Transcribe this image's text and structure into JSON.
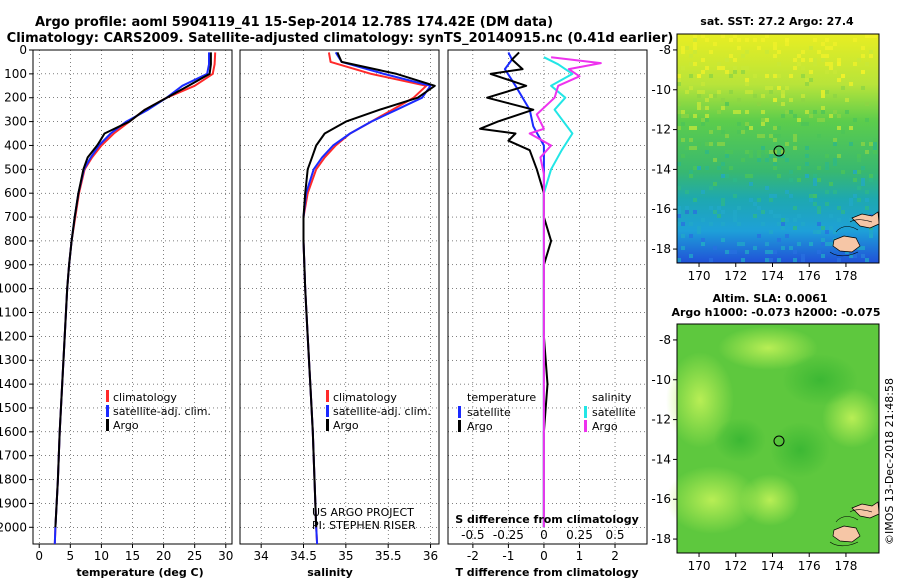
{
  "header": {
    "title_line1": "Argo profile: aoml 5904119_41 15-Sep-2014 12.78S 174.42E (DM data)",
    "title_line2": "Climatology: CARS2009. Satellite-adjusted climatology: synTS_20140915.nc (0.41d earlier)"
  },
  "colors": {
    "climatology": "#ff2a2a",
    "satellite": "#1a2aff",
    "argo": "#000000",
    "sat_salinity": "#22e6e6",
    "argo_salinity": "#ee33ee"
  },
  "credits": {
    "line1": "US ARGO PROJECT",
    "line2": "PI: STEPHEN RISER",
    "watermark": "©IMOS 13-Dec-2018 21:48:58"
  },
  "chart_data": [
    {
      "type": "line",
      "name": "temperature-profile",
      "xlabel": "temperature (deg C)",
      "xlim": [
        -1,
        31
      ],
      "ylim": [
        2070,
        0
      ],
      "xticks": [
        "0",
        "5",
        "10",
        "15",
        "20",
        "25",
        "30"
      ],
      "xtick_values": [
        0,
        5,
        10,
        15,
        20,
        25,
        30
      ],
      "yticks": [
        "0",
        "100",
        "200",
        "300",
        "400",
        "500",
        "600",
        "700",
        "800",
        "900",
        "1000",
        "1100",
        "1200",
        "1300",
        "1400",
        "1500",
        "1600",
        "1700",
        "1800",
        "1900",
        "2000"
      ],
      "legend": [
        "climatology",
        "satellite-adj. clim.",
        "Argo"
      ],
      "series": [
        {
          "name": "climatology",
          "color": "#ff2a2a",
          "points": [
            [
              28.3,
              10
            ],
            [
              28.2,
              60
            ],
            [
              27.9,
              100
            ],
            [
              25,
              150
            ],
            [
              20.5,
              200
            ],
            [
              17,
              250
            ],
            [
              14.5,
              300
            ],
            [
              12,
              350
            ],
            [
              10,
              400
            ],
            [
              8.5,
              450
            ],
            [
              7.3,
              500
            ],
            [
              6.4,
              600
            ],
            [
              5.8,
              700
            ],
            [
              5.2,
              800
            ],
            [
              4.8,
              900
            ],
            [
              4.5,
              1000
            ],
            [
              4.1,
              1200
            ],
            [
              3.7,
              1400
            ],
            [
              3.3,
              1600
            ],
            [
              3.0,
              1800
            ],
            [
              2.6,
              2000
            ],
            [
              2.5,
              2070
            ]
          ]
        },
        {
          "name": "satellite-adj. clim.",
          "color": "#1a2aff",
          "points": [
            [
              27.3,
              10
            ],
            [
              27.3,
              60
            ],
            [
              27.0,
              100
            ],
            [
              23,
              150
            ],
            [
              20.5,
              200
            ],
            [
              17.5,
              250
            ],
            [
              14,
              300
            ],
            [
              11.5,
              350
            ],
            [
              9.6,
              400
            ],
            [
              8.3,
              450
            ],
            [
              7.2,
              500
            ],
            [
              6.3,
              600
            ],
            [
              5.7,
              700
            ],
            [
              5.2,
              800
            ],
            [
              4.8,
              900
            ],
            [
              4.5,
              1000
            ],
            [
              4.1,
              1200
            ],
            [
              3.7,
              1400
            ],
            [
              3.3,
              1600
            ],
            [
              3.0,
              1800
            ],
            [
              2.6,
              2000
            ],
            [
              2.5,
              2070
            ]
          ]
        },
        {
          "name": "Argo",
          "color": "#000000",
          "points": [
            [
              27.6,
              10
            ],
            [
              27.6,
              60
            ],
            [
              27.4,
              100
            ],
            [
              24,
              150
            ],
            [
              20.5,
              200
            ],
            [
              17,
              250
            ],
            [
              14.5,
              300
            ],
            [
              10.5,
              350
            ],
            [
              9.8,
              380
            ],
            [
              9.3,
              400
            ],
            [
              7.8,
              450
            ],
            [
              7.1,
              500
            ],
            [
              6.3,
              600
            ],
            [
              5.7,
              700
            ],
            [
              5.2,
              800
            ],
            [
              4.8,
              900
            ],
            [
              4.5,
              1000
            ],
            [
              4.1,
              1200
            ],
            [
              3.7,
              1400
            ],
            [
              3.3,
              1600
            ],
            [
              3.0,
              1800
            ],
            [
              2.6,
              2000
            ]
          ]
        }
      ]
    },
    {
      "type": "line",
      "name": "salinity-profile",
      "xlabel": "salinity",
      "xlim": [
        33.75,
        36.1
      ],
      "ylim": [
        2070,
        0
      ],
      "xticks": [
        "34",
        "34.5",
        "35",
        "35.5",
        "36"
      ],
      "xtick_values": [
        34,
        34.5,
        35,
        35.5,
        36
      ],
      "legend": [
        "climatology",
        "satellite-adj. clim.",
        "Argo"
      ],
      "series": [
        {
          "name": "climatology",
          "color": "#ff2a2a",
          "points": [
            [
              34.8,
              10
            ],
            [
              34.82,
              50
            ],
            [
              35.3,
              100
            ],
            [
              35.95,
              150
            ],
            [
              35.8,
              200
            ],
            [
              35.55,
              250
            ],
            [
              35.3,
              300
            ],
            [
              35.05,
              350
            ],
            [
              34.88,
              400
            ],
            [
              34.75,
              450
            ],
            [
              34.65,
              500
            ],
            [
              34.55,
              600
            ],
            [
              34.5,
              700
            ],
            [
              34.5,
              800
            ],
            [
              34.52,
              1000
            ],
            [
              34.55,
              1200
            ],
            [
              34.58,
              1400
            ],
            [
              34.61,
              1600
            ],
            [
              34.63,
              1800
            ],
            [
              34.65,
              2000
            ],
            [
              34.66,
              2070
            ]
          ]
        },
        {
          "name": "satellite-adj. clim.",
          "color": "#1a2aff",
          "points": [
            [
              34.88,
              10
            ],
            [
              34.95,
              50
            ],
            [
              35.45,
              100
            ],
            [
              36.0,
              150
            ],
            [
              35.9,
              200
            ],
            [
              35.6,
              250
            ],
            [
              35.3,
              300
            ],
            [
              35.05,
              350
            ],
            [
              34.85,
              400
            ],
            [
              34.72,
              450
            ],
            [
              34.62,
              500
            ],
            [
              34.53,
              600
            ],
            [
              34.5,
              700
            ],
            [
              34.5,
              800
            ],
            [
              34.52,
              1000
            ],
            [
              34.55,
              1200
            ],
            [
              34.58,
              1400
            ],
            [
              34.61,
              1600
            ],
            [
              34.63,
              1800
            ],
            [
              34.65,
              2000
            ],
            [
              34.66,
              2070
            ]
          ]
        },
        {
          "name": "Argo",
          "color": "#000000",
          "points": [
            [
              34.9,
              10
            ],
            [
              34.95,
              50
            ],
            [
              35.6,
              100
            ],
            [
              36.05,
              150
            ],
            [
              35.85,
              200
            ],
            [
              35.4,
              250
            ],
            [
              35.0,
              300
            ],
            [
              34.75,
              350
            ],
            [
              34.65,
              400
            ],
            [
              34.6,
              450
            ],
            [
              34.55,
              500
            ],
            [
              34.52,
              600
            ],
            [
              34.5,
              700
            ],
            [
              34.5,
              800
            ],
            [
              34.52,
              1000
            ],
            [
              34.55,
              1200
            ],
            [
              34.58,
              1400
            ],
            [
              34.61,
              1600
            ],
            [
              34.63,
              1800
            ],
            [
              34.65,
              2000
            ]
          ]
        }
      ]
    },
    {
      "type": "line",
      "name": "difference-profile",
      "xlabel": "T difference from climatology",
      "xlim": [
        -2.7,
        2.9
      ],
      "ylim": [
        2070,
        0
      ],
      "xticks": [
        "-2",
        "-1",
        "0",
        "1",
        "2"
      ],
      "xtick_values": [
        -2,
        -1,
        0,
        1,
        2
      ],
      "secondary_label": "S difference from climatology",
      "secondary_ticks": [
        "-0.5",
        "-0.25",
        "0",
        "0.25",
        "0.5"
      ],
      "secondary_tick_values": [
        -2,
        -1,
        0,
        1,
        2
      ],
      "legend_temperature_title": "temperature",
      "legend_salinity_title": "salinity",
      "legend": [
        "satellite",
        "Argo",
        "satellite",
        "Argo"
      ],
      "series": [
        {
          "name": "T satellite",
          "color": "#1a2aff",
          "points": [
            [
              -1,
              10
            ],
            [
              -0.9,
              40
            ],
            [
              -1.1,
              80
            ],
            [
              -0.8,
              150
            ],
            [
              -0.4,
              250
            ],
            [
              -0.3,
              320
            ],
            [
              0,
              400
            ],
            [
              0,
              500
            ],
            [
              0,
              600
            ],
            [
              0,
              800
            ],
            [
              0,
              1200
            ],
            [
              0,
              2000
            ]
          ]
        },
        {
          "name": "T Argo",
          "color": "#000000",
          "points": [
            [
              -0.7,
              10
            ],
            [
              -0.9,
              40
            ],
            [
              -0.6,
              80
            ],
            [
              -1.5,
              100
            ],
            [
              -0.5,
              150
            ],
            [
              -1.6,
              200
            ],
            [
              -0.3,
              250
            ],
            [
              -1.3,
              300
            ],
            [
              -1.8,
              330
            ],
            [
              -0.8,
              350
            ],
            [
              -1.0,
              380
            ],
            [
              -0.4,
              420
            ],
            [
              -0.2,
              500
            ],
            [
              0,
              600
            ],
            [
              0,
              700
            ],
            [
              0.2,
              800
            ],
            [
              0,
              900
            ],
            [
              0,
              1200
            ],
            [
              0.1,
              1400
            ],
            [
              0,
              1600
            ],
            [
              0,
              2000
            ]
          ]
        },
        {
          "name": "S satellite",
          "color": "#22e6e6",
          "points": [
            [
              0,
              30
            ],
            [
              0.4,
              60
            ],
            [
              0.8,
              100
            ],
            [
              0.2,
              150
            ],
            [
              0.6,
              200
            ],
            [
              0.3,
              250
            ],
            [
              0.8,
              350
            ],
            [
              0.5,
              420
            ],
            [
              0.2,
              500
            ],
            [
              0,
              600
            ],
            [
              0,
              800
            ],
            [
              0,
              1400
            ],
            [
              0,
              2000
            ]
          ]
        },
        {
          "name": "S Argo",
          "color": "#ee33ee",
          "points": [
            [
              0.2,
              30
            ],
            [
              1.6,
              55
            ],
            [
              0.7,
              80
            ],
            [
              1.0,
              110
            ],
            [
              0.4,
              150
            ],
            [
              0.3,
              200
            ],
            [
              -0.2,
              270
            ],
            [
              0,
              330
            ],
            [
              -0.4,
              350
            ],
            [
              0.2,
              400
            ],
            [
              -0.1,
              450
            ],
            [
              0,
              520
            ],
            [
              0,
              600
            ],
            [
              0,
              800
            ],
            [
              0,
              1200
            ],
            [
              0,
              2000
            ]
          ]
        }
      ]
    },
    {
      "type": "heatmap",
      "name": "sst-map",
      "title": "sat. SST: 27.2 Argo: 27.4",
      "xlim": [
        168.8,
        179.8
      ],
      "ylim": [
        -18.7,
        -7.2
      ],
      "xticks": [
        "170",
        "172",
        "174",
        "176",
        "178"
      ],
      "xtick_values": [
        170,
        172,
        174,
        176,
        178
      ],
      "yticks": [
        "-8",
        "-10",
        "-12",
        "-14",
        "-16",
        "-18"
      ],
      "ytick_values": [
        -8,
        -10,
        -12,
        -14,
        -16,
        -18
      ],
      "argo_position": [
        174.42,
        -12.78
      ]
    },
    {
      "type": "heatmap",
      "name": "sla-map",
      "title_line1": "Altim. SLA: 0.0061",
      "title_line2": "Argo h1000: -0.073 h2000: -0.075",
      "xlim": [
        168.8,
        179.8
      ],
      "ylim": [
        -18.7,
        -7.2
      ],
      "xticks": [
        "170",
        "172",
        "174",
        "176",
        "178"
      ],
      "xtick_values": [
        170,
        172,
        174,
        176,
        178
      ],
      "yticks": [
        "-8",
        "-10",
        "-12",
        "-14",
        "-16",
        "-18"
      ],
      "ytick_values": [
        -8,
        -10,
        -12,
        -14,
        -16,
        -18
      ],
      "argo_position": [
        174.42,
        -12.78
      ]
    }
  ]
}
